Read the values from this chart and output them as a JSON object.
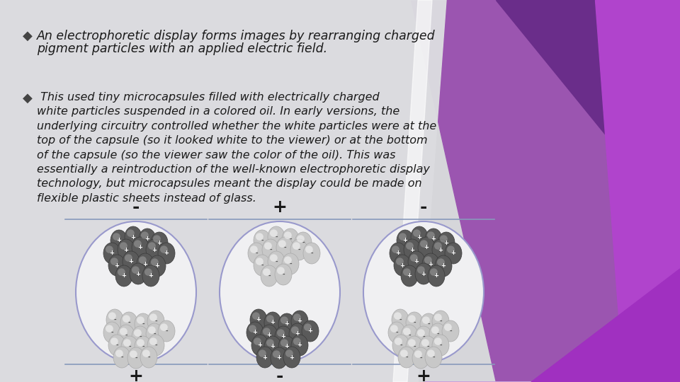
{
  "text_color": "#222222",
  "bullet1_line1": "An electrophoretic display forms images by rearranging charged",
  "bullet1_line2": "pigment particles with an applied electric field.",
  "bullet2_text": " This used tiny microcapsules filled with electrically charged\nwhite particles suspended in a colored oil. In early versions, the\nunderlying circuitry controlled whether the white particles were at the\ntop of the capsule (so it looked white to the viewer) or at the bottom\nof the capsule (so the viewer saw the color of the oil). This was\nessentially a reintroduction of the well-known electrophoretic display\ntechnology, but microcapsules meant the display could be made on\nflexible plastic sheets instead of glass.",
  "top_labels": [
    "-",
    "+",
    "-"
  ],
  "bottom_labels": [
    "+",
    "-",
    "+"
  ],
  "capsule_line_color": "#8899bb",
  "bg_gray": "#d8d8dc",
  "bg_white": "#e8e8ec"
}
